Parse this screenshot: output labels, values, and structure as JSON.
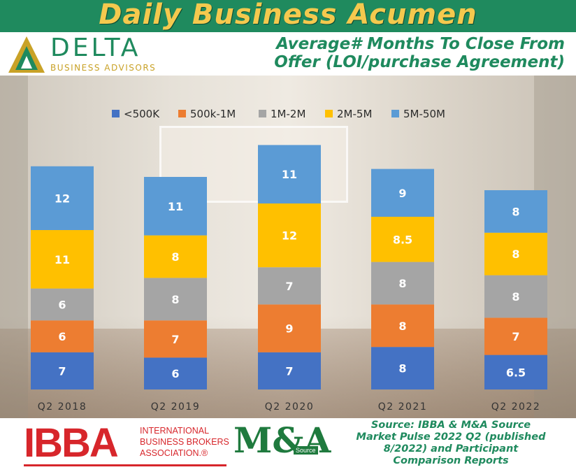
{
  "banner": {
    "title": "Daily Business Acumen"
  },
  "header": {
    "logo_word": "DELTA",
    "logo_sub": "BUSINESS ADVISORS",
    "subtitle_line1": "Average# Months To Close From",
    "subtitle_line2": "Offer (LOI/purchase Agreement)"
  },
  "footer": {
    "ibba_logo": "IBBA",
    "ibba_line1": "INTERNATIONAL",
    "ibba_line2": "BUSINESS BROKERS",
    "ibba_line3": "ASSOCIATION.®",
    "ma_logo": "M&A",
    "ma_sub": "Source",
    "source_line1": "Source: IBBA & M&A Source",
    "source_line2": "Market Pulse 2022 Q2 (published",
    "source_line3": "8/2022) and Participant",
    "source_line4": "Comparison Reports"
  },
  "colors": {
    "banner": "#1f8a5e",
    "banner_text": "#f4c94e",
    "ibba_red": "#d7262b"
  },
  "chart_data": {
    "type": "bar",
    "stacked": true,
    "categories": [
      "Q2 2018",
      "Q2 2019",
      "Q2 2020",
      "Q2 2021",
      "Q2 2022"
    ],
    "series": [
      {
        "name": "<500K",
        "color": "#4472c4",
        "values": [
          7,
          6,
          7,
          8,
          6.5
        ]
      },
      {
        "name": "500k-1M",
        "color": "#ed7d31",
        "values": [
          6,
          7,
          9,
          8,
          7
        ]
      },
      {
        "name": "1M-2M",
        "color": "#a5a5a5",
        "values": [
          6,
          8,
          7,
          8,
          8
        ]
      },
      {
        "name": "2M-5M",
        "color": "#ffc000",
        "values": [
          11,
          8,
          12,
          8.5,
          8
        ]
      },
      {
        "name": "5M-50M",
        "color": "#5b9bd5",
        "values": [
          12,
          11,
          11,
          9,
          8
        ]
      }
    ],
    "title": "Average# Months To Close From Offer (LOI/purchase Agreement)",
    "legend_position": "top",
    "grid": false
  }
}
